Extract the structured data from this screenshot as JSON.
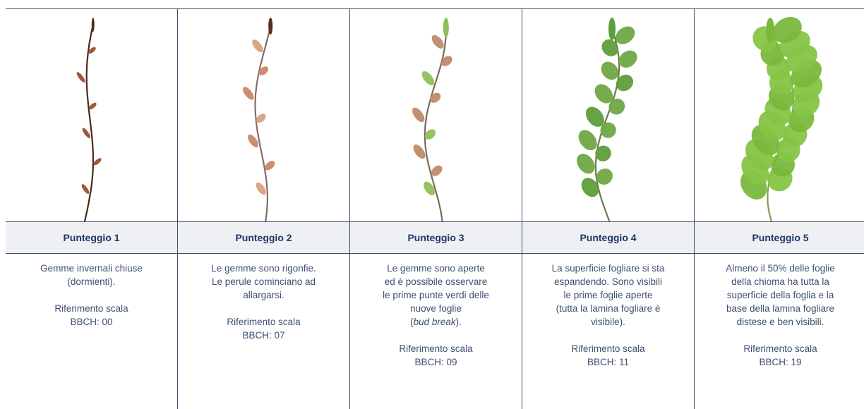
{
  "columns": [
    {
      "title": "Punteggio 1",
      "description": [
        "Gemme invernali chiuse",
        "(dormienti)."
      ],
      "reference": [
        "Riferimento scala",
        "BBCH: 00"
      ]
    },
    {
      "title": "Punteggio 2",
      "description": [
        "Le gemme sono rigonfie.",
        "Le perule cominciano ad",
        "allargarsi."
      ],
      "reference": [
        "Riferimento scala",
        "BBCH: 07"
      ]
    },
    {
      "title": "Punteggio 3",
      "description": [
        "Le gemme sono aperte",
        "ed è possibile osservare",
        "le prime punte verdi delle",
        "nuove foglie"
      ],
      "note": {
        "open": "(",
        "italic": "bud break",
        "close": ")."
      },
      "reference": [
        "Riferimento scala",
        "BBCH: 09"
      ]
    },
    {
      "title": "Punteggio 4",
      "description": [
        "La superficie fogliare si sta",
        "espandendo. Sono visibili",
        "le prime foglie aperte",
        "(tutta la lamina fogliare è",
        "visibile)."
      ],
      "reference": [
        "Riferimento scala",
        "BBCH: 11"
      ]
    },
    {
      "title": "Punteggio 5",
      "description": [
        "Almeno il 50% delle foglie",
        "della chioma ha tutta la",
        "superficie della foglia e la",
        "base della lamina fogliare",
        "distese e ben visibili."
      ],
      "reference": [
        "Riferimento scala",
        "BBCH: 19"
      ]
    }
  ]
}
